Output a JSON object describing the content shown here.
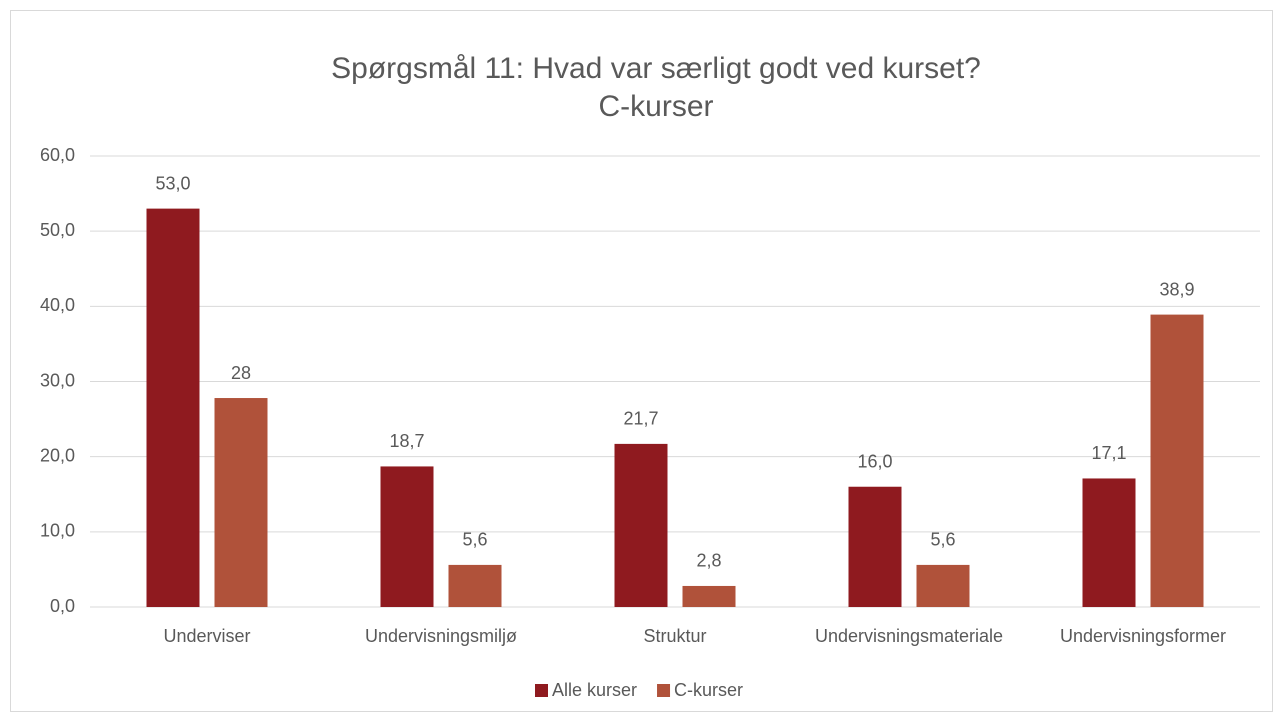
{
  "chart_data": {
    "type": "bar",
    "title": "Spørgsmål 11: Hvad var særligt godt ved kurset?",
    "subtitle": "C-kurser",
    "categories": [
      "Underviser",
      "Undervisningsmiljø",
      "Struktur",
      "Undervisningsmateriale",
      "Undervisningsformer"
    ],
    "series": [
      {
        "name": "Alle kurser",
        "color": "#8f1a1f",
        "values": [
          53.0,
          18.7,
          21.7,
          16.0,
          17.1
        ],
        "value_labels": [
          "53,0",
          "18,7",
          "21,7",
          "16,0",
          "17,1"
        ]
      },
      {
        "name": "C-kurser",
        "color": "#b0523a",
        "values": [
          27.8,
          5.6,
          2.8,
          5.6,
          38.9
        ],
        "value_labels": [
          "28",
          "5,6",
          "2,8",
          "5,6",
          "38,9"
        ]
      }
    ],
    "ylim": [
      0,
      60
    ],
    "yticks": [
      {
        "value": 0,
        "label": "0,0"
      },
      {
        "value": 10,
        "label": "10,0"
      },
      {
        "value": 20,
        "label": "20,0"
      },
      {
        "value": 30,
        "label": "30,0"
      },
      {
        "value": 40,
        "label": "40,0"
      },
      {
        "value": 50,
        "label": "50,0"
      },
      {
        "value": 60,
        "label": "60,0"
      }
    ],
    "grid": true,
    "legend": "bottom"
  }
}
